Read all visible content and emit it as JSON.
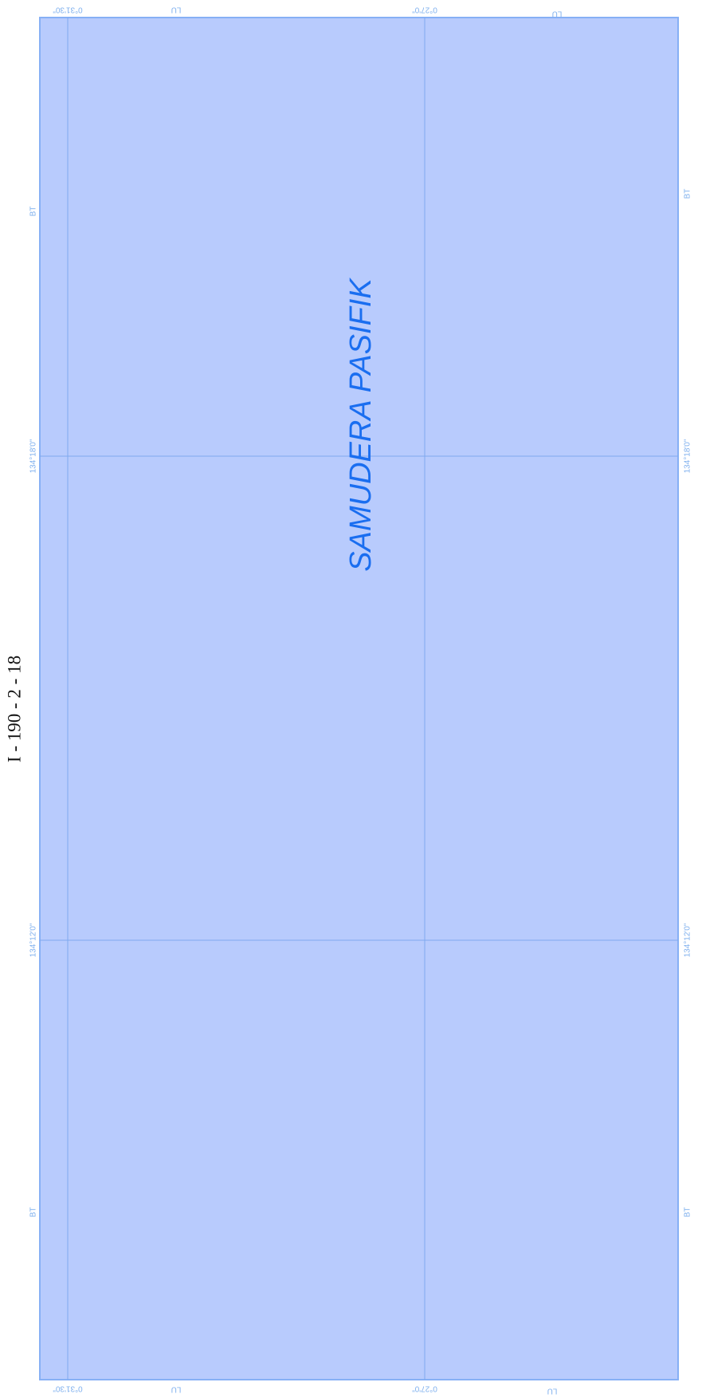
{
  "sheet_number": "I - 190 - 2 - 18",
  "sea_name": "SAMUDERA PASIFIK",
  "grid": {
    "latitude_labels": [
      "0°31'30\"",
      "0°27'0\""
    ],
    "latitude_hemisphere": "LU",
    "longitude_labels": [
      "134°18'0\"",
      "134°12'0\""
    ],
    "longitude_hemisphere": "BT"
  }
}
